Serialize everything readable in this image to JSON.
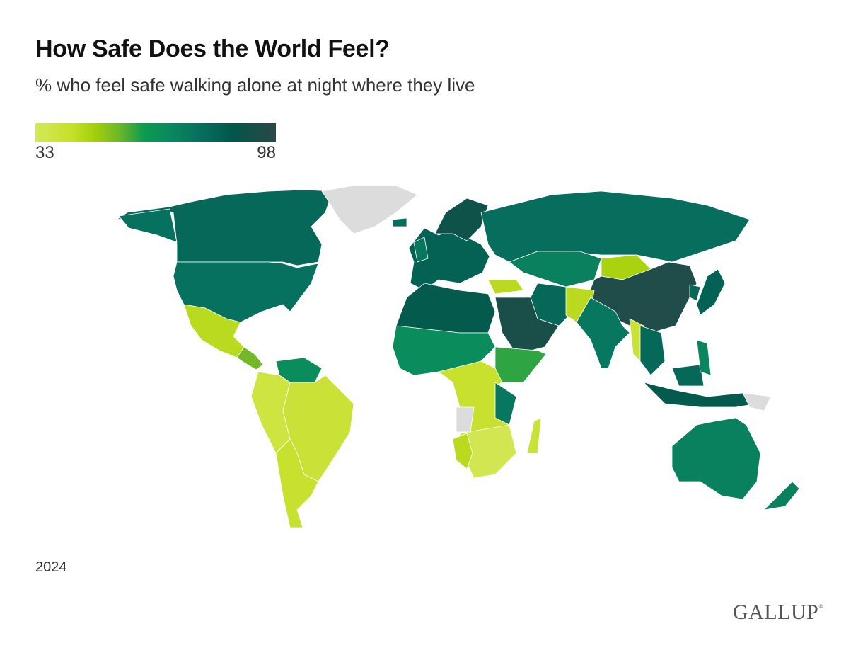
{
  "title": "How Safe Does the World Feel?",
  "subtitle": "% who feel safe walking alone at night where they live",
  "legend": {
    "min": "33",
    "max": "98",
    "colors": [
      "#d4e85a",
      "#a2cf0a",
      "#0d9b4e",
      "#07705f",
      "#02564a",
      "#2a4848"
    ]
  },
  "year": "2024",
  "logo": "GALLUP",
  "no_data_color": "#dcdcdc",
  "chart_data": {
    "type": "choropleth",
    "range": [
      33,
      98
    ],
    "regions": {
      "canada": 80,
      "usa": 77,
      "alaska": 77,
      "mexico": 45,
      "central_america": 55,
      "greenland": null,
      "venezuela_guyana": 68,
      "andean": 38,
      "brazil": 40,
      "southern_cone": 42,
      "europe": 82,
      "nordic": 90,
      "uk": 75,
      "iceland": 78,
      "russia": 78,
      "central_asia": 72,
      "mongolia": 48,
      "china": 95,
      "japan": 82,
      "korea": 80,
      "turkey": 45,
      "iran": 80,
      "saudi_arabia": 93,
      "pakistan": 45,
      "india": 75,
      "myanmar": 40,
      "indochina": 80,
      "indonesia": 85,
      "borneo_malaysia": 80,
      "philippines": 70,
      "png": null,
      "australia": 72,
      "new_zealand": 72,
      "north_africa": 85,
      "west_africa": 68,
      "horn_of_africa": 60,
      "central_africa": 42,
      "tanzania": 75,
      "southern_africa": 35,
      "namibia": 45,
      "angola": null,
      "madagascar": 40
    }
  }
}
